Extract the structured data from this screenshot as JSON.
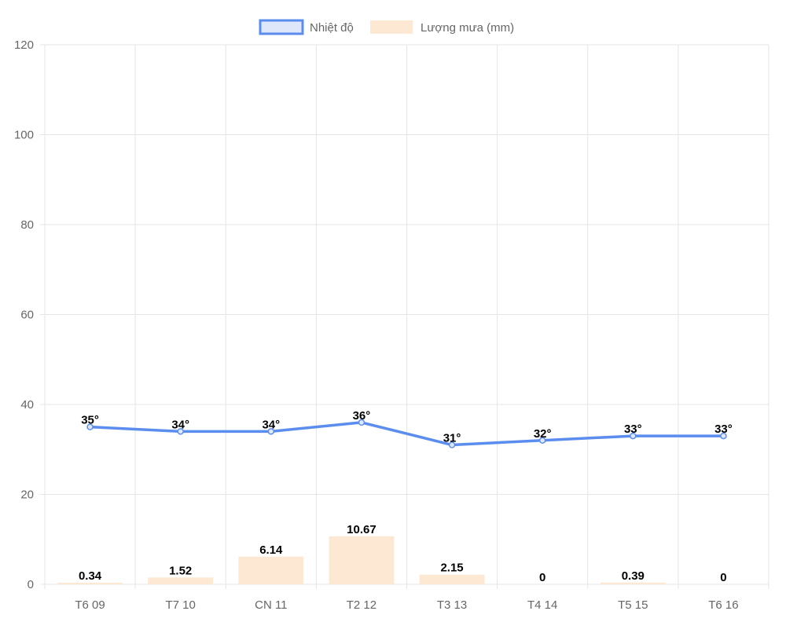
{
  "chart_data": {
    "type": "bar",
    "categories": [
      "T6 09",
      "T7 10",
      "CN 11",
      "T2 12",
      "T3 13",
      "T4 14",
      "T5 15",
      "T6 16"
    ],
    "series": [
      {
        "name": "Nhiệt độ",
        "type": "line",
        "values": [
          35,
          34,
          34,
          36,
          31,
          32,
          33,
          33
        ],
        "labels": [
          "35°",
          "34°",
          "34°",
          "36°",
          "31°",
          "32°",
          "33°",
          "33°"
        ],
        "color": "#5b8def"
      },
      {
        "name": "Lượng mưa (mm)",
        "type": "bar",
        "values": [
          0.34,
          1.52,
          6.14,
          10.67,
          2.15,
          0,
          0.39,
          0
        ],
        "labels": [
          "0.34",
          "1.52",
          "6.14",
          "10.67",
          "2.15",
          "0",
          "0.39",
          "0"
        ],
        "color": "#fde9d3"
      }
    ],
    "yticks": [
      "0",
      "20",
      "40",
      "60",
      "80",
      "100",
      "120"
    ],
    "ylim": [
      0,
      120
    ],
    "grid": true,
    "legend_position": "top-center"
  }
}
